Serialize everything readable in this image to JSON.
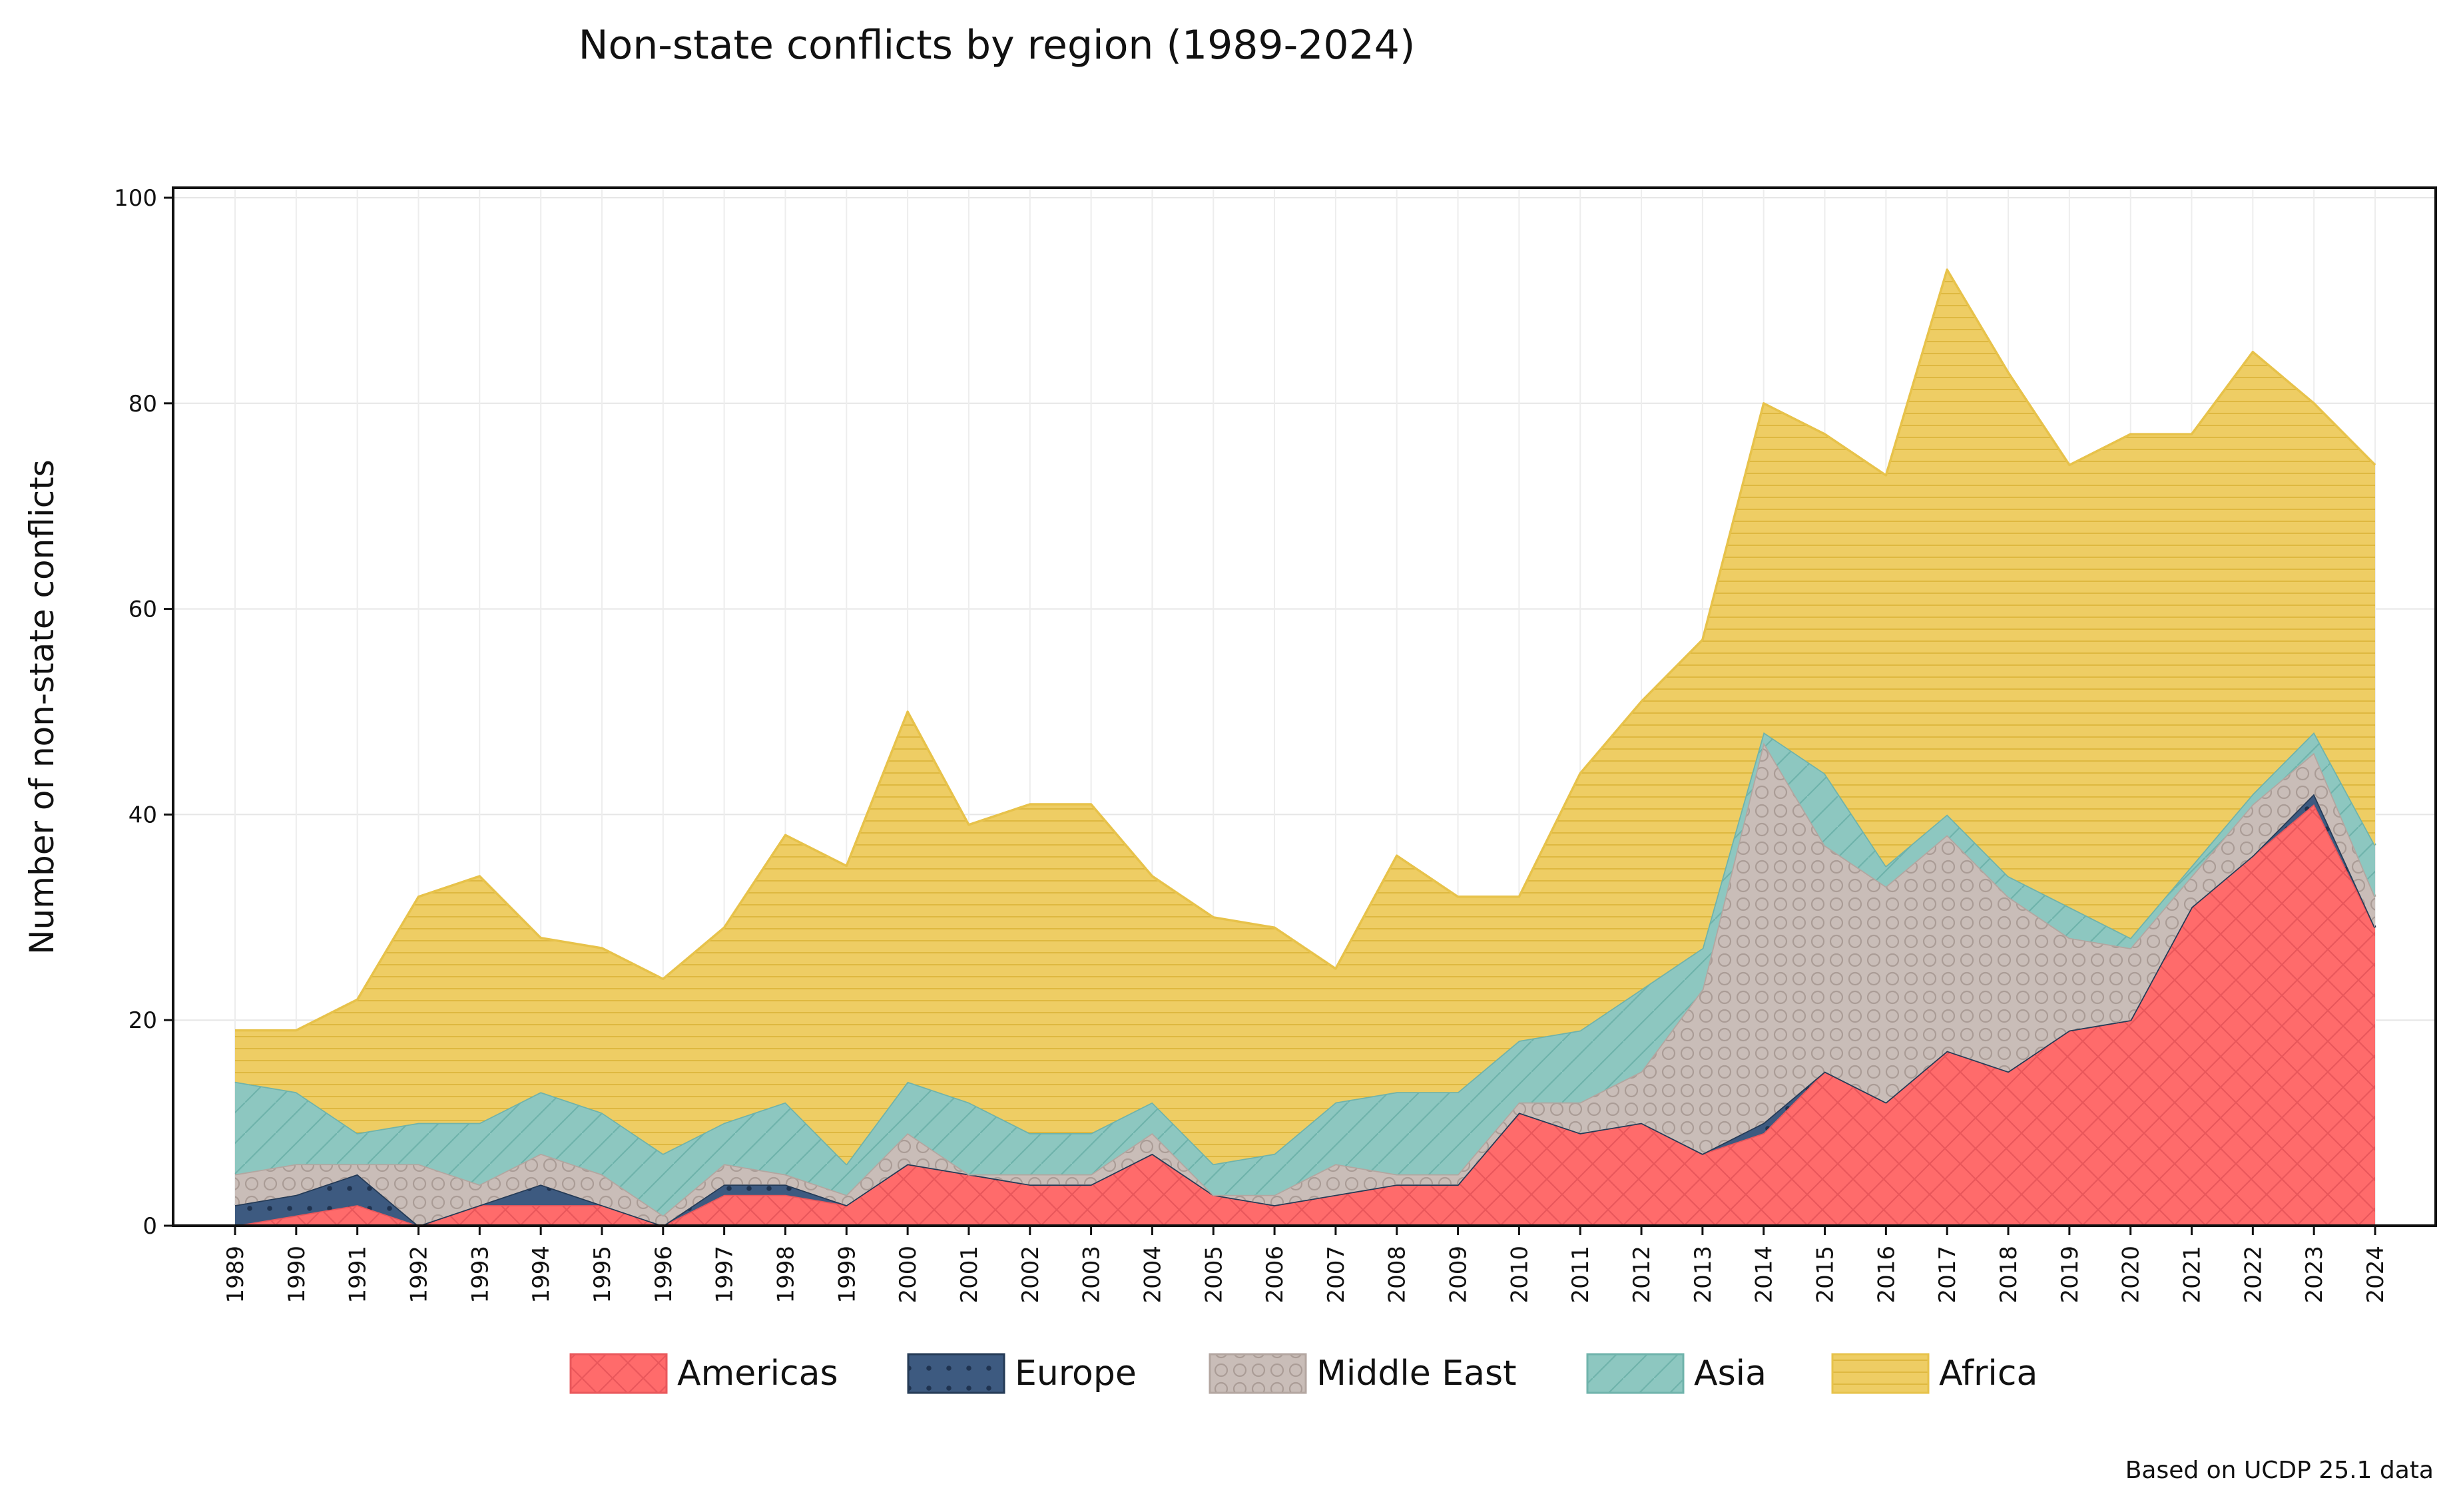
{
  "chart_data": {
    "type": "area",
    "stacked": true,
    "title": "Non-state conflicts by region (1989-2024)",
    "xlabel": "",
    "ylabel": "Number of non-state conflicts",
    "ylim": [
      0,
      100
    ],
    "yticks": [
      "0",
      "20",
      "40",
      "60",
      "80",
      "100"
    ],
    "grid": true,
    "legend_position": "bottom-center",
    "caption": "Based on UCDP 25.1 data",
    "categories": [
      "1989",
      "1990",
      "1991",
      "1992",
      "1993",
      "1994",
      "1995",
      "1996",
      "1997",
      "1998",
      "1999",
      "2000",
      "2001",
      "2002",
      "2003",
      "2004",
      "2005",
      "2006",
      "2007",
      "2008",
      "2009",
      "2010",
      "2011",
      "2012",
      "2013",
      "2014",
      "2015",
      "2016",
      "2017",
      "2018",
      "2019",
      "2020",
      "2021",
      "2022",
      "2023",
      "2024"
    ],
    "series": [
      {
        "name": "Americas",
        "color": "#FF6B6B",
        "edge": "#E9575B",
        "pattern": "crosshatch",
        "values": [
          0,
          1,
          2,
          0,
          2,
          2,
          2,
          0,
          3,
          3,
          2,
          6,
          5,
          4,
          4,
          7,
          3,
          2,
          3,
          4,
          4,
          11,
          9,
          10,
          7,
          9,
          15,
          12,
          17,
          15,
          19,
          20,
          31,
          36,
          41,
          29
        ]
      },
      {
        "name": "Europe",
        "color": "#3D5A80",
        "edge": "#253B56",
        "pattern": "dots",
        "values": [
          2,
          2,
          3,
          0,
          0,
          2,
          0,
          0,
          1,
          1,
          0,
          0,
          0,
          0,
          0,
          0,
          0,
          0,
          0,
          0,
          0,
          0,
          0,
          0,
          0,
          1,
          0,
          0,
          0,
          0,
          0,
          0,
          0,
          0,
          1,
          0
        ]
      },
      {
        "name": "Middle East",
        "color": "#C9BDB8",
        "edge": "#B3A6A0",
        "pattern": "circles",
        "values": [
          3,
          3,
          1,
          6,
          2,
          3,
          3,
          1,
          2,
          1,
          1,
          3,
          0,
          1,
          1,
          2,
          0,
          1,
          3,
          1,
          1,
          1,
          3,
          5,
          16,
          37,
          22,
          21,
          21,
          17,
          9,
          7,
          3,
          5,
          4,
          3
        ]
      },
      {
        "name": "Asia",
        "color": "#8DC7C0",
        "edge": "#6FB3AB",
        "pattern": "diagonal",
        "values": [
          9,
          7,
          3,
          4,
          6,
          6,
          6,
          6,
          4,
          7,
          3,
          5,
          7,
          4,
          4,
          3,
          3,
          4,
          6,
          8,
          8,
          6,
          7,
          8,
          4,
          1,
          7,
          2,
          2,
          2,
          3,
          1,
          1,
          1,
          2,
          5
        ]
      },
      {
        "name": "Africa",
        "color": "#EECD64",
        "edge": "#E7C24A",
        "pattern": "horizontal",
        "values": [
          5,
          6,
          13,
          22,
          24,
          15,
          16,
          17,
          19,
          26,
          29,
          36,
          27,
          32,
          32,
          22,
          24,
          22,
          13,
          23,
          19,
          14,
          25,
          28,
          30,
          32,
          33,
          38,
          53,
          49,
          43,
          49,
          42,
          43,
          32,
          37
        ]
      }
    ]
  }
}
